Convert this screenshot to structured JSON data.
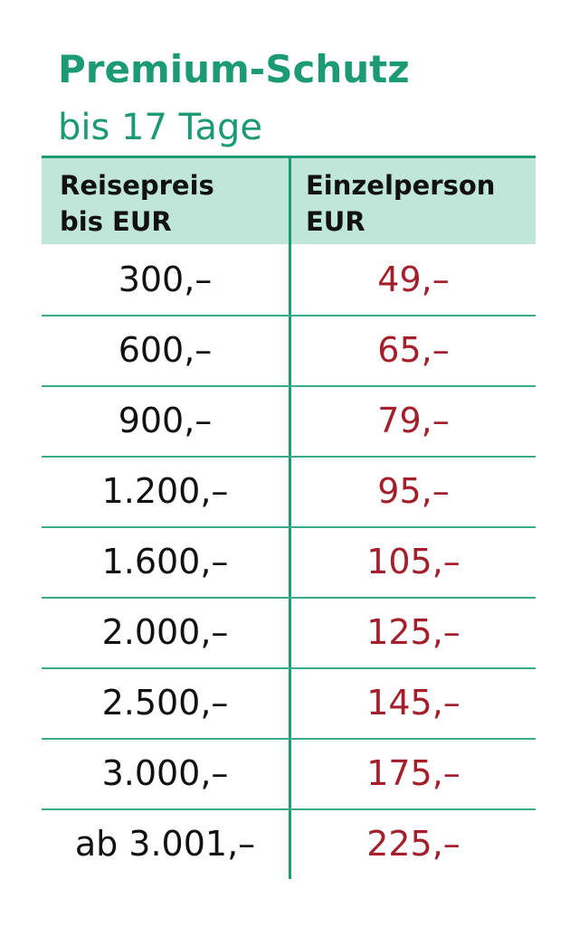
{
  "header": {
    "title": "Premium-Schutz",
    "subtitle": "bis 17 Tage"
  },
  "table": {
    "columns": [
      [
        "Reisepreis",
        "bis EUR"
      ],
      [
        "Einzelperson",
        "EUR"
      ]
    ],
    "rows": [
      [
        "300,–",
        "49,–"
      ],
      [
        "600,–",
        "65,–"
      ],
      [
        "900,–",
        "79,–"
      ],
      [
        "1.200,–",
        "95,–"
      ],
      [
        "1.600,–",
        "105,–"
      ],
      [
        "2.000,–",
        "125,–"
      ],
      [
        "2.500,–",
        "145,–"
      ],
      [
        "3.000,–",
        "175,–"
      ],
      [
        "ab 3.001,–",
        "225,–"
      ]
    ]
  }
}
